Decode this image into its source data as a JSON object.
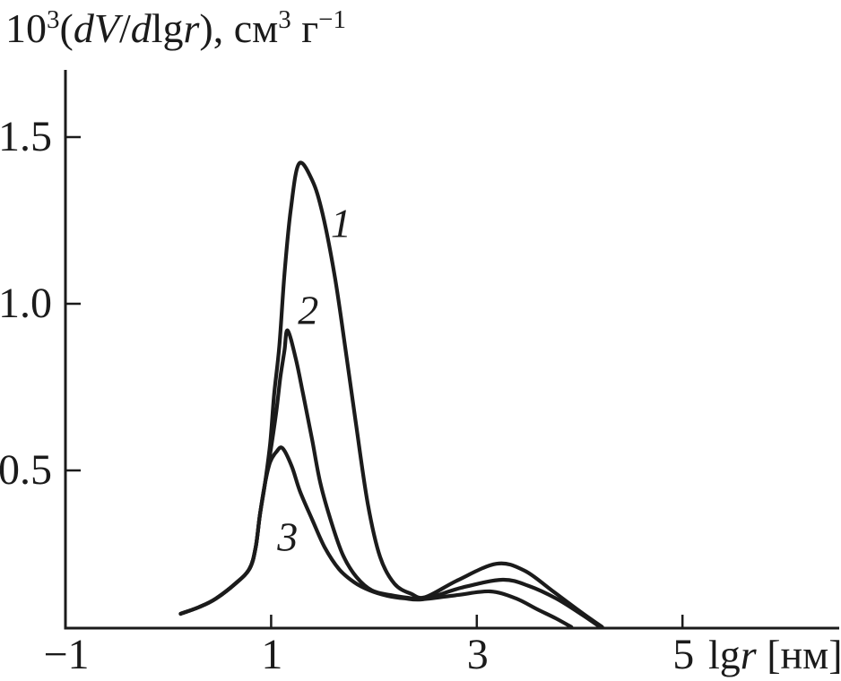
{
  "figure": {
    "background": "#ffffff",
    "ink_color": "#1b1b1b"
  },
  "y_axis": {
    "title_plain": "10³(dV/dlgr), см³ г⁻¹",
    "title_segments": [
      {
        "t": "10",
        "style": "normal"
      },
      {
        "t": "3",
        "style": "sup"
      },
      {
        "t": "(",
        "style": "normal"
      },
      {
        "t": "dV",
        "style": "italic"
      },
      {
        "t": "/",
        "style": "normal"
      },
      {
        "t": "d",
        "style": "italic"
      },
      {
        "t": "lg",
        "style": "normal"
      },
      {
        "t": "r",
        "style": "italic"
      },
      {
        "t": "), см",
        "style": "normal"
      },
      {
        "t": "3",
        "style": "sup"
      },
      {
        "t": " г",
        "style": "normal"
      },
      {
        "t": "−1",
        "style": "sup"
      }
    ]
  },
  "x_axis": {
    "unit_plain": "lgr [нм]",
    "unit_segments": [
      {
        "t": "lg",
        "style": "normal"
      },
      {
        "t": "r",
        "style": "italic"
      },
      {
        "t": " [нм]",
        "style": "normal"
      }
    ]
  },
  "chart_data": {
    "type": "line",
    "title": "",
    "xlabel": "lgr [нм]",
    "ylabel": "10³(dV/dlgr), см³ г⁻¹",
    "xlim": [
      -1,
      6.54
    ],
    "ylim": [
      0,
      1.69
    ],
    "grid": false,
    "legend": "inline numeric labels on curves",
    "x_ticks": [
      {
        "v": -1,
        "label": "−1",
        "tick": false
      },
      {
        "v": 1,
        "label": "1",
        "tick": true
      },
      {
        "v": 3,
        "label": "3",
        "tick": true
      },
      {
        "v": 5,
        "label": "5",
        "tick": true
      }
    ],
    "y_ticks": [
      {
        "v": 0.5,
        "label": "0.5"
      },
      {
        "v": 1.0,
        "label": "1.0"
      },
      {
        "v": 1.5,
        "label": "1.5"
      }
    ],
    "series": [
      {
        "name": "1",
        "peak": {
          "x": 1.27,
          "y": 1.43
        },
        "points": [
          [
            0.12,
            0.07
          ],
          [
            0.3,
            0.09
          ],
          [
            0.46,
            0.115
          ],
          [
            0.65,
            0.16
          ],
          [
            0.79,
            0.205
          ],
          [
            0.85,
            0.27
          ],
          [
            0.89,
            0.365
          ],
          [
            0.94,
            0.46
          ],
          [
            0.99,
            0.58
          ],
          [
            1.03,
            0.73
          ],
          [
            1.08,
            0.875
          ],
          [
            1.13,
            1.09
          ],
          [
            1.19,
            1.28
          ],
          [
            1.27,
            1.42
          ],
          [
            1.4,
            1.37
          ],
          [
            1.5,
            1.27
          ],
          [
            1.62,
            1.08
          ],
          [
            1.72,
            0.87
          ],
          [
            1.82,
            0.65
          ],
          [
            1.94,
            0.4
          ],
          [
            2.06,
            0.24
          ],
          [
            2.2,
            0.16
          ],
          [
            2.36,
            0.13
          ],
          [
            2.5,
            0.12
          ],
          [
            2.81,
            0.17
          ],
          [
            3.19,
            0.22
          ],
          [
            3.46,
            0.2
          ],
          [
            3.73,
            0.14
          ],
          [
            3.99,
            0.08
          ],
          [
            4.22,
            0.03
          ]
        ]
      },
      {
        "name": "2",
        "peak": {
          "x": 1.16,
          "y": 0.92
        },
        "points": [
          [
            0.12,
            0.07
          ],
          [
            0.3,
            0.09
          ],
          [
            0.46,
            0.115
          ],
          [
            0.65,
            0.16
          ],
          [
            0.79,
            0.205
          ],
          [
            0.85,
            0.27
          ],
          [
            0.89,
            0.365
          ],
          [
            0.94,
            0.46
          ],
          [
            0.99,
            0.55
          ],
          [
            1.05,
            0.675
          ],
          [
            1.09,
            0.78
          ],
          [
            1.13,
            0.86
          ],
          [
            1.16,
            0.92
          ],
          [
            1.24,
            0.835
          ],
          [
            1.31,
            0.73
          ],
          [
            1.4,
            0.59
          ],
          [
            1.48,
            0.46
          ],
          [
            1.59,
            0.34
          ],
          [
            1.7,
            0.245
          ],
          [
            1.83,
            0.18
          ],
          [
            1.98,
            0.14
          ],
          [
            2.16,
            0.126
          ],
          [
            2.33,
            0.118
          ],
          [
            2.5,
            0.115
          ],
          [
            2.85,
            0.148
          ],
          [
            3.25,
            0.172
          ],
          [
            3.51,
            0.153
          ],
          [
            3.77,
            0.116
          ],
          [
            4.01,
            0.07
          ],
          [
            4.2,
            0.03
          ]
        ]
      },
      {
        "name": "3",
        "peak": {
          "x": 1.11,
          "y": 0.57
        },
        "points": [
          [
            0.12,
            0.07
          ],
          [
            0.3,
            0.09
          ],
          [
            0.46,
            0.115
          ],
          [
            0.65,
            0.16
          ],
          [
            0.79,
            0.205
          ],
          [
            0.85,
            0.27
          ],
          [
            0.89,
            0.365
          ],
          [
            0.94,
            0.46
          ],
          [
            0.99,
            0.525
          ],
          [
            1.05,
            0.555
          ],
          [
            1.11,
            0.567
          ],
          [
            1.2,
            0.513
          ],
          [
            1.28,
            0.438
          ],
          [
            1.4,
            0.352
          ],
          [
            1.52,
            0.27
          ],
          [
            1.66,
            0.204
          ],
          [
            1.81,
            0.164
          ],
          [
            1.96,
            0.14
          ],
          [
            2.13,
            0.124
          ],
          [
            2.3,
            0.116
          ],
          [
            2.46,
            0.113
          ],
          [
            2.81,
            0.126
          ],
          [
            3.13,
            0.137
          ],
          [
            3.38,
            0.116
          ],
          [
            3.59,
            0.083
          ],
          [
            3.77,
            0.056
          ],
          [
            3.92,
            0.03
          ]
        ]
      }
    ],
    "annotations": [
      {
        "label": "1",
        "x": 1.68,
        "y": 1.24
      },
      {
        "label": "2",
        "x": 1.36,
        "y": 0.98
      },
      {
        "label": "3",
        "x": 1.16,
        "y": 0.3
      }
    ]
  }
}
